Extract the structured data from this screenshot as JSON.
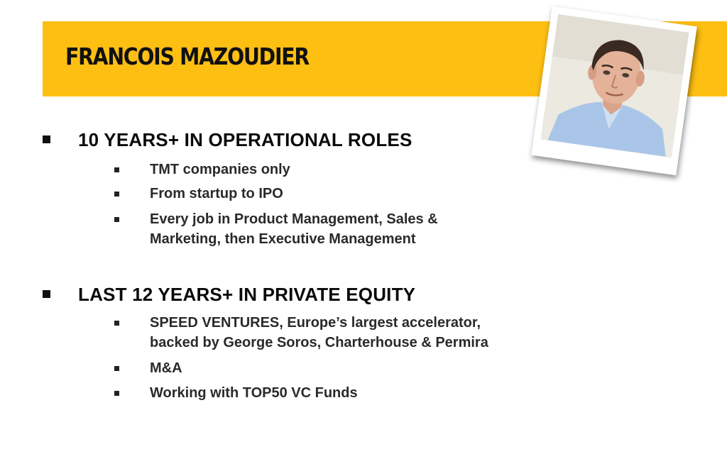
{
  "slide": {
    "title": "FRANCOIS MAZOUDIER",
    "accent_color": "#fdbf12",
    "sections": [
      {
        "heading": "10 YEARS+ IN OPERATIONAL ROLES",
        "items": [
          "TMT companies only",
          "From startup to IPO",
          "Every job in Product Management, Sales &\nMarketing, then Executive Management"
        ]
      },
      {
        "heading": "LAST 12 YEARS+ IN PRIVATE EQUITY",
        "items": [
          "SPEED VENTURES, Europe’s largest accelerator,\nbacked by George Soros, Charterhouse & Permira",
          "M&A",
          "Working with TOP50 VC Funds"
        ]
      }
    ]
  }
}
